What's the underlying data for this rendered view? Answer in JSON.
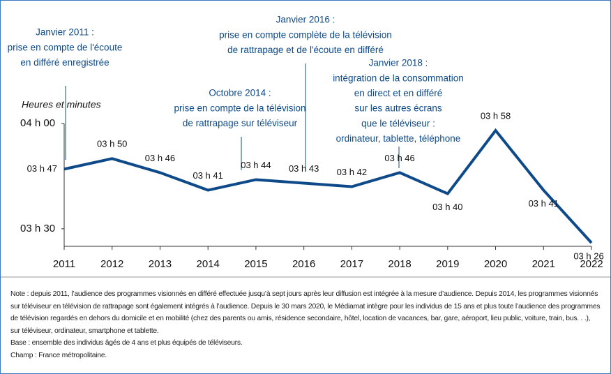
{
  "chart_data": {
    "type": "line",
    "y_label": "Heures et minutes",
    "categories": [
      "2011",
      "2012",
      "2013",
      "2014",
      "2015",
      "2016",
      "2017",
      "2018",
      "2019",
      "2020",
      "2021",
      "2022"
    ],
    "series": [
      {
        "color": "#0e4a8a",
        "values": [
          227,
          230,
          226,
          221,
          224,
          223,
          222,
          226,
          220,
          238,
          221,
          206
        ],
        "value_labels": [
          "03 h 47",
          "03 h 50",
          "03 h 46",
          "03 h 41",
          "03 h 44",
          "03 h 43",
          "03 h 42",
          "03 h 46",
          "03 h 40",
          "03 h 58",
          "03 h 41",
          "03 h 26"
        ]
      }
    ],
    "ylim": [
      205,
      240
    ],
    "yticks": [
      {
        "value": 210,
        "label": "03 h 30"
      },
      {
        "value": 240,
        "label": "04 h 00"
      }
    ],
    "annotations": [
      [
        "Janvier 2011 :",
        "prise en compte de l'écoute",
        "en différé enregistrée"
      ],
      [
        "Octobre 2014 :",
        "prise en compte de la télévision",
        "de rattrapage sur téléviseur"
      ],
      [
        "Janvier 2016 :",
        "prise en compte complète de la télévision",
        "de rattrapage et de l'écoute en différé"
      ],
      [
        "Janvier 2018 :",
        "intégration de la consommation",
        "en direct et en différé",
        "sur les autres écrans",
        "que le téléviseur :",
        "ordinateur, tablette, téléphone"
      ]
    ],
    "notes": [
      "Note : depuis 2011, l’audience des programmes visionnés en différé effectuée jusqu’à sept jours après leur diffusion est intégrée à la mesure d’audience. Depuis 2014, les programmes visionnés sur téléviseur en télévision de rattrapage sont également intégrés à l’audience. Depuis le 30 mars 2020, le Médiamat intègre pour les individus de 15 ans et plus toute l’audience des programmes de télévision regardés en dehors du domicile et en mobilité (chez des parents ou amis, résidence secondaire, hôtel, location de vacances, bar, gare, aéroport, lieu public, voiture, train, bus. . .), sur téléviseur, ordinateur, smartphone et tablette.",
      "Base : ensemble des individus âgés de 4 ans et plus équipés de téléviseurs.",
      "Champ : France métropolitaine."
    ]
  }
}
